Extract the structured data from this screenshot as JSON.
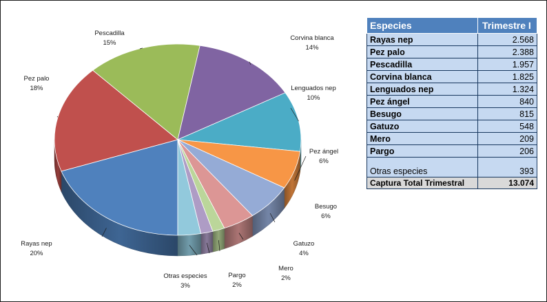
{
  "chart_data": {
    "type": "pie",
    "categories": [
      "Rayas nep",
      "Pez palo",
      "Pescadilla",
      "Corvina blanca",
      "Lenguados nep",
      "Pez ángel",
      "Besugo",
      "Gatuzo",
      "Mero",
      "Pargo",
      "Otras especies"
    ],
    "values": [
      2568,
      2388,
      1957,
      1825,
      1324,
      840,
      815,
      548,
      209,
      206,
      393
    ],
    "percent_labels": [
      "20%",
      "18%",
      "15%",
      "14%",
      "10%",
      "6%",
      "6%",
      "4%",
      "2%",
      "2%",
      "3%"
    ],
    "colors": [
      "#4f81bd",
      "#c0504d",
      "#9bbb59",
      "#8064a2",
      "#4bacc6",
      "#f79646",
      "#95abd6",
      "#dc9695",
      "#bbd69a",
      "#ae9cc5",
      "#92c9dc"
    ],
    "legend": "none"
  },
  "table": {
    "header_species": "Especies",
    "header_quarter": "Trimestre I",
    "rows": [
      {
        "species": "Rayas nep",
        "value": "2.568"
      },
      {
        "species": "Pez palo",
        "value": "2.388"
      },
      {
        "species": "Pescadilla",
        "value": "1.957"
      },
      {
        "species": "Corvina blanca",
        "value": "1.825"
      },
      {
        "species": "Lenguados nep",
        "value": "1.324"
      },
      {
        "species": "Pez ángel",
        "value": "840"
      },
      {
        "species": "Besugo",
        "value": "815"
      },
      {
        "species": "Gatuzo",
        "value": "548"
      },
      {
        "species": "Mero",
        "value": "209"
      },
      {
        "species": "Pargo",
        "value": "206"
      }
    ],
    "other_species": {
      "species": "Otras especies",
      "value": "393"
    },
    "total": {
      "label": "Captura Total Trimestral",
      "value": "13.074"
    }
  }
}
